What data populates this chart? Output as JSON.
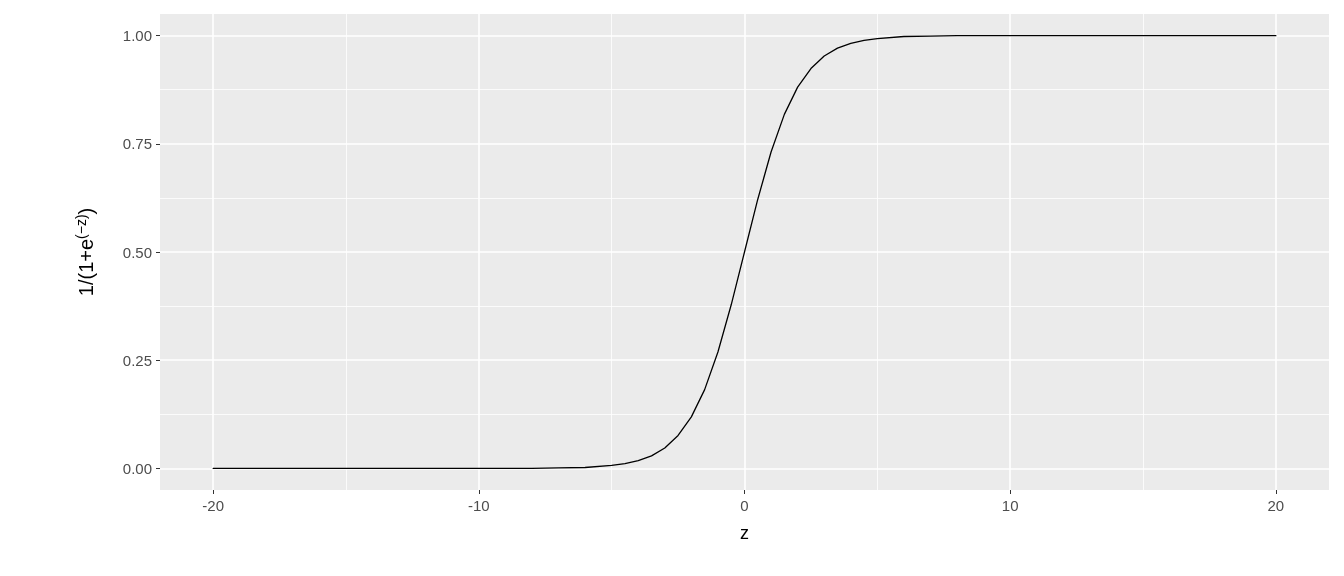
{
  "chart_data": {
    "type": "line",
    "xlabel": "z",
    "ylabel": "1/(1+e$^{(−z)}$)",
    "x": [
      -20,
      -15,
      -10,
      -8,
      -7,
      -6,
      -5,
      -4.5,
      -4,
      -3.5,
      -3,
      -2.5,
      -2,
      -1.5,
      -1,
      -0.5,
      0,
      0.5,
      1,
      1.5,
      2,
      2.5,
      3,
      3.5,
      4,
      4.5,
      5,
      6,
      7,
      8,
      10,
      15,
      20
    ],
    "series": [
      {
        "color": "#000000",
        "values": [
          0,
          0,
          0,
          0,
          0.001,
          0.002,
          0.007,
          0.011,
          0.018,
          0.029,
          0.047,
          0.076,
          0.119,
          0.182,
          0.269,
          0.378,
          0.5,
          0.622,
          0.731,
          0.818,
          0.881,
          0.924,
          0.953,
          0.971,
          0.982,
          0.989,
          0.993,
          0.998,
          0.999,
          1,
          1,
          1,
          1
        ]
      }
    ],
    "xlim": [
      -22,
      22
    ],
    "xticks": [
      -20,
      {
        "value": -15,
        "label": null
      },
      -10,
      {
        "value": -5,
        "label": null
      },
      0,
      {
        "value": 5,
        "label": null
      },
      10,
      {
        "value": 15,
        "label": null
      },
      20
    ],
    "ylim": [
      -0.05,
      1.05
    ],
    "yticks": [
      {
        "value": 0,
        "label": "0.00"
      },
      {
        "value": 0.125,
        "label": null
      },
      {
        "value": 0.25,
        "label": "0.25"
      },
      {
        "value": 0.375,
        "label": null
      },
      {
        "value": 0.5,
        "label": "0.50"
      },
      {
        "value": 0.625,
        "label": null
      },
      {
        "value": 0.75,
        "label": "0.75"
      },
      {
        "value": 0.875,
        "label": null
      },
      {
        "value": 1,
        "label": "1.00"
      }
    ],
    "grid": true,
    "line_style": "solid"
  }
}
